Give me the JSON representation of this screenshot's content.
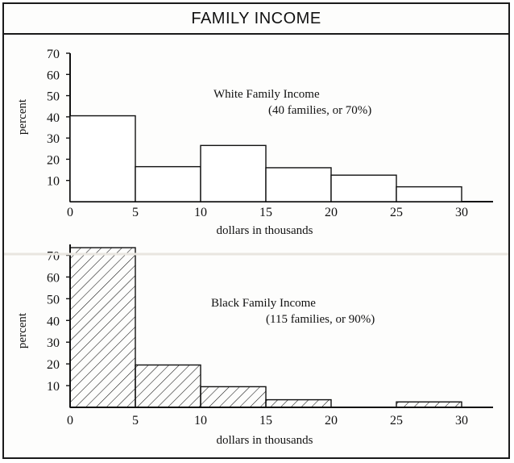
{
  "title": "FAMILY INCOME",
  "chart_data": [
    {
      "type": "bar",
      "title": "White Family Income",
      "subtitle": "(40 families, or 70%)",
      "xlabel": "dollars in thousands",
      "ylabel": "percent",
      "x_ticks": [
        "0",
        "5",
        "10",
        "15",
        "20",
        "25",
        "30"
      ],
      "y_ticks": [
        "10",
        "20",
        "30",
        "40",
        "50",
        "60",
        "70"
      ],
      "xlim": [
        0,
        32.5
      ],
      "ylim": [
        0,
        70
      ],
      "bins": [
        {
          "x0": 0,
          "x1": 5,
          "value": 40.5
        },
        {
          "x0": 5,
          "x1": 10,
          "value": 16.5
        },
        {
          "x0": 10,
          "x1": 15,
          "value": 26.5
        },
        {
          "x0": 15,
          "x1": 20,
          "value": 16
        },
        {
          "x0": 20,
          "x1": 25,
          "value": 12.5
        },
        {
          "x0": 25,
          "x1": 30,
          "value": 7
        }
      ],
      "hatched": false,
      "grid": false
    },
    {
      "type": "bar",
      "title": "Black Family Income",
      "subtitle": "(115 families, or 90%)",
      "xlabel": "dollars in thousands",
      "ylabel": "percent",
      "x_ticks": [
        "0",
        "5",
        "10",
        "15",
        "20",
        "25",
        "30"
      ],
      "y_ticks": [
        "10",
        "20",
        "30",
        "40",
        "50",
        "60",
        "70"
      ],
      "xlim": [
        0,
        32.5
      ],
      "ylim": [
        0,
        75
      ],
      "bins": [
        {
          "x0": 0,
          "x1": 5,
          "value": 73.5
        },
        {
          "x0": 5,
          "x1": 10,
          "value": 19.5
        },
        {
          "x0": 10,
          "x1": 15,
          "value": 9.5
        },
        {
          "x0": 15,
          "x1": 20,
          "value": 3.5
        },
        {
          "x0": 20,
          "x1": 25,
          "value": 0
        },
        {
          "x0": 25,
          "x1": 30,
          "value": 2.5
        }
      ],
      "hatched": true,
      "grid": false
    }
  ]
}
